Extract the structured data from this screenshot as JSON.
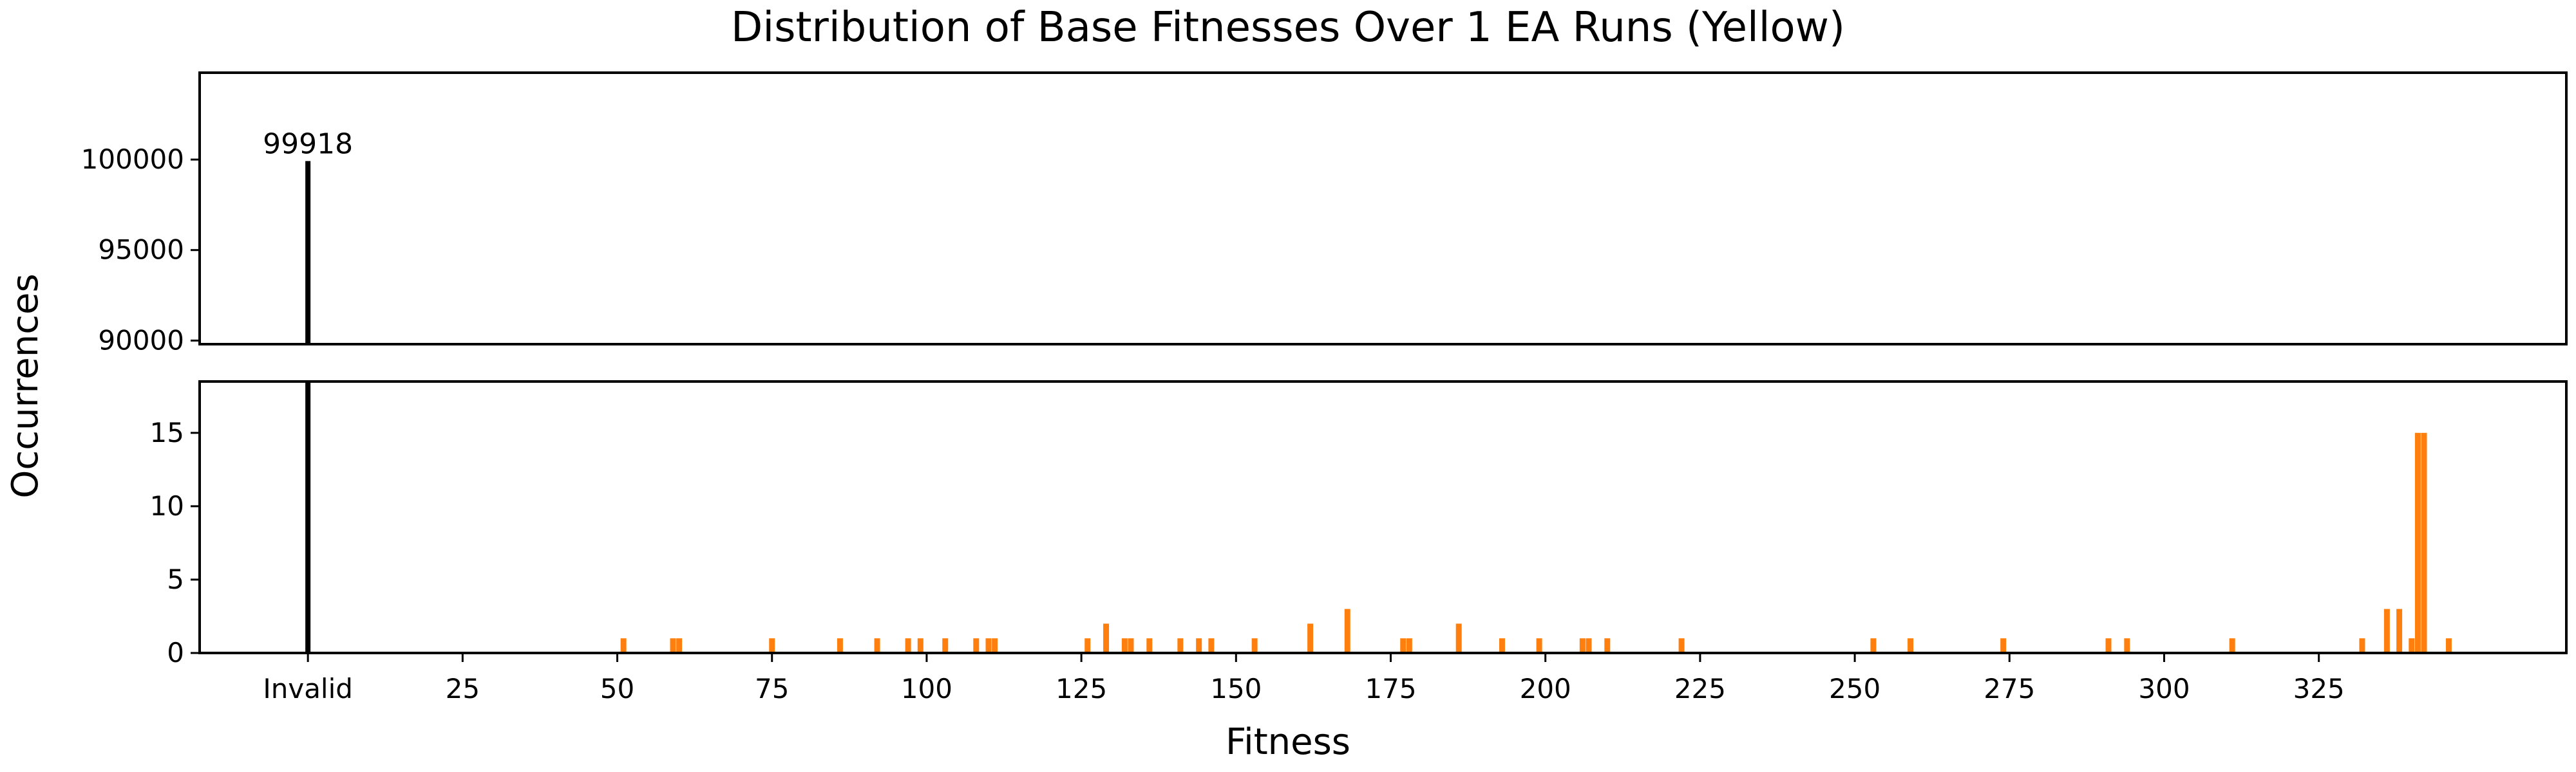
{
  "chart_data": {
    "type": "bar",
    "title": "Distribution of Base Fitnesses Over 1 EA Runs (Yellow)",
    "xlabel": "Fitness",
    "ylabel": "Occurrences",
    "x_axis": {
      "invalid_label": "Invalid",
      "invalid_position": 0,
      "range": [
        -17.5,
        365
      ],
      "tick_values": [
        25,
        50,
        75,
        100,
        125,
        150,
        175,
        200,
        225,
        250,
        275,
        300,
        325
      ],
      "tick_labels": [
        "25",
        "50",
        "75",
        "100",
        "125",
        "150",
        "175",
        "200",
        "225",
        "250",
        "275",
        "300",
        "325"
      ]
    },
    "panels": [
      {
        "name": "upper",
        "ylim": [
          89800,
          104800
        ],
        "yticks": [
          90000,
          95000,
          100000
        ],
        "ytick_labels": [
          "90000",
          "95000",
          "100000"
        ]
      },
      {
        "name": "lower",
        "ylim": [
          0,
          18.5
        ],
        "yticks": [
          0,
          5,
          10,
          15
        ],
        "ytick_labels": [
          "0",
          "5",
          "10",
          "15"
        ]
      }
    ],
    "invalid_bar": {
      "value": 99918,
      "label": "99918",
      "color": "#000000"
    },
    "bar_color": "#ff7f0e",
    "bars": [
      {
        "x": 51,
        "y": 1
      },
      {
        "x": 59,
        "y": 1
      },
      {
        "x": 60,
        "y": 1
      },
      {
        "x": 75,
        "y": 1
      },
      {
        "x": 86,
        "y": 1
      },
      {
        "x": 92,
        "y": 1
      },
      {
        "x": 97,
        "y": 1
      },
      {
        "x": 99,
        "y": 1
      },
      {
        "x": 103,
        "y": 1
      },
      {
        "x": 108,
        "y": 1
      },
      {
        "x": 110,
        "y": 1
      },
      {
        "x": 111,
        "y": 1
      },
      {
        "x": 126,
        "y": 1
      },
      {
        "x": 129,
        "y": 2
      },
      {
        "x": 132,
        "y": 1
      },
      {
        "x": 133,
        "y": 1
      },
      {
        "x": 136,
        "y": 1
      },
      {
        "x": 141,
        "y": 1
      },
      {
        "x": 144,
        "y": 1
      },
      {
        "x": 146,
        "y": 1
      },
      {
        "x": 153,
        "y": 1
      },
      {
        "x": 162,
        "y": 2
      },
      {
        "x": 168,
        "y": 3
      },
      {
        "x": 177,
        "y": 1
      },
      {
        "x": 178,
        "y": 1
      },
      {
        "x": 186,
        "y": 2
      },
      {
        "x": 193,
        "y": 1
      },
      {
        "x": 199,
        "y": 1
      },
      {
        "x": 206,
        "y": 1
      },
      {
        "x": 207,
        "y": 1
      },
      {
        "x": 210,
        "y": 1
      },
      {
        "x": 222,
        "y": 1
      },
      {
        "x": 253,
        "y": 1
      },
      {
        "x": 259,
        "y": 1
      },
      {
        "x": 274,
        "y": 1
      },
      {
        "x": 291,
        "y": 1
      },
      {
        "x": 294,
        "y": 1
      },
      {
        "x": 311,
        "y": 1
      },
      {
        "x": 332,
        "y": 1
      },
      {
        "x": 336,
        "y": 3
      },
      {
        "x": 338,
        "y": 3
      },
      {
        "x": 340,
        "y": 1
      },
      {
        "x": 341,
        "y": 15
      },
      {
        "x": 342,
        "y": 15
      },
      {
        "x": 346,
        "y": 1
      }
    ]
  }
}
